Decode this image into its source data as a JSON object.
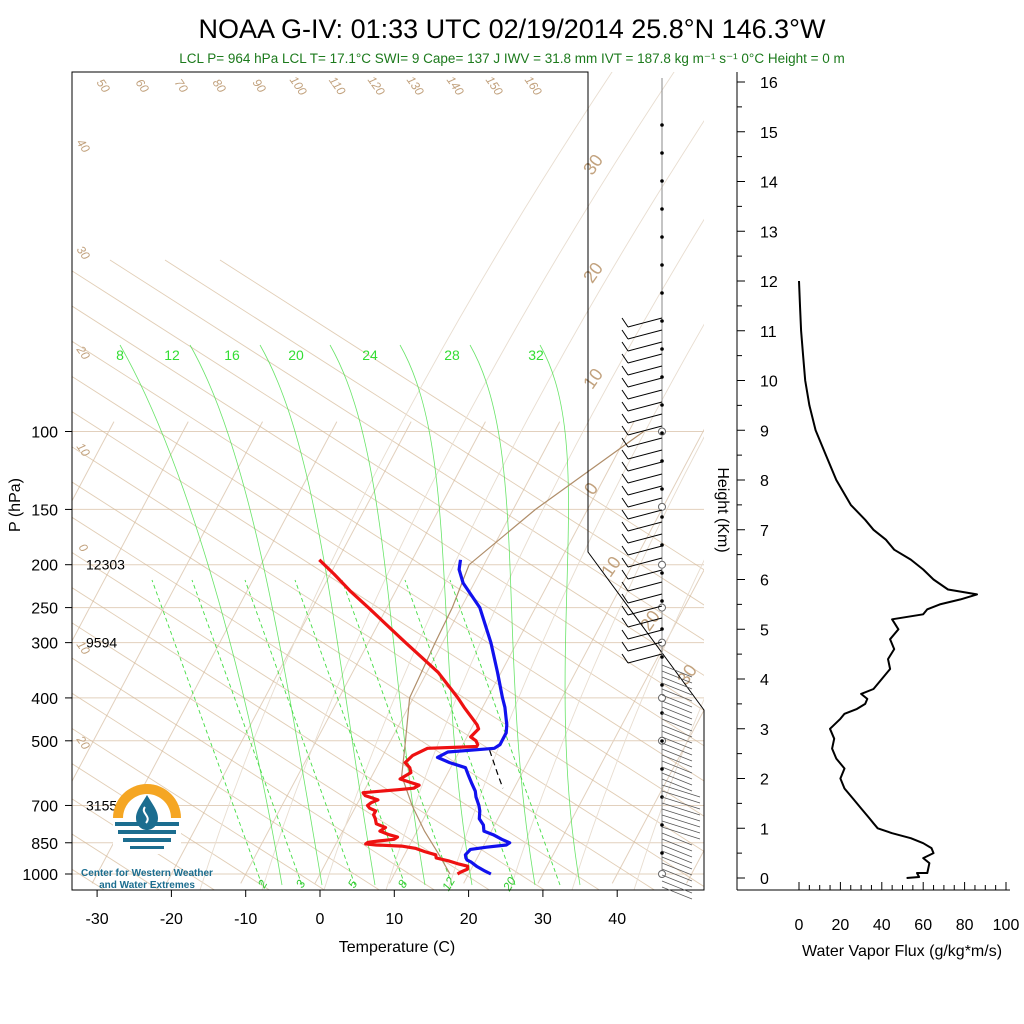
{
  "header": {
    "title": "NOAA G-IV: 01:33 UTC 02/19/2014  25.8°N 146.3°W",
    "subtitle": "LCL P= 964 hPa  LCL T= 17.1°C  SWI= 9  Cape= 137 J  IWV = 31.8 mm  IVT = 187.8 kg m⁻¹ s⁻¹  0°C Height = 0 m"
  },
  "logo": {
    "line1": "Center for Western Weather",
    "line2": "and Water Extremes",
    "colors": {
      "sun": "#f5a623",
      "water": "#1b6d8f"
    },
    "icon": "water-drop-logo"
  },
  "colors": {
    "temperature": "#ee1111",
    "dewpoint": "#1111ee",
    "isotherm": "#e2d0bd",
    "dry_adiabat": "#d4b896",
    "moist_adiabat": "#e8ddd0",
    "mixing_ratio": "#44dd44",
    "parcel": "#b08e6a",
    "lcl_segment": "#000000"
  },
  "chart_data": [
    {
      "type": "line",
      "name": "skew-t",
      "xlabel": "Temperature (C)",
      "ylabel": "P (hPa)",
      "x_ticks": [
        -30,
        -20,
        -10,
        0,
        10,
        20,
        30,
        40
      ],
      "pressure_ticks": [
        100,
        150,
        200,
        250,
        300,
        400,
        500,
        700,
        850,
        1000
      ],
      "height_labels": [
        {
          "p": 200,
          "label": "12303"
        },
        {
          "p": 300,
          "label": "9594"
        },
        {
          "p": 700,
          "label": "3155"
        }
      ],
      "mixing_ratio_labels_upper": [
        "8",
        "12",
        "16",
        "20",
        "24",
        "28",
        "32"
      ],
      "mixing_ratio_labels_lower": [
        "2",
        "3",
        "5",
        "8",
        "12",
        "20"
      ],
      "dry_adiabat_labels": [
        "50",
        "60",
        "70",
        "80",
        "90",
        "100",
        "110",
        "120",
        "130",
        "140",
        "150",
        "160"
      ],
      "dry_adiabat_side_labels": [
        "40",
        "30",
        "20",
        "10",
        "0",
        "10",
        "20"
      ],
      "moist_adiabat_labels": [
        "30",
        "20",
        "10",
        "0",
        "10",
        "20",
        "30"
      ],
      "series": [
        {
          "name": "Temperature",
          "points": [
            [
              1000,
              18.5
            ],
            [
              990,
              18.8
            ],
            [
              975,
              19.5
            ],
            [
              960,
              19.3
            ],
            [
              950,
              18.0
            ],
            [
              935,
              16.5
            ],
            [
              920,
              14.5
            ],
            [
              905,
              14.2
            ],
            [
              890,
              12.5
            ],
            [
              875,
              11.0
            ],
            [
              865,
              9.0
            ],
            [
              860,
              5.5
            ],
            [
              855,
              4.0
            ],
            [
              848,
              4.2
            ],
            [
              842,
              5.5
            ],
            [
              835,
              7.5
            ],
            [
              825,
              7.8
            ],
            [
              815,
              6.5
            ],
            [
              800,
              5.0
            ],
            [
              785,
              5.5
            ],
            [
              770,
              4.0
            ],
            [
              750,
              3.5
            ],
            [
              735,
              3.0
            ],
            [
              720,
              3.0
            ],
            [
              710,
              2.0
            ],
            [
              700,
              1.5
            ],
            [
              690,
              1.8
            ],
            [
              680,
              2.5
            ],
            [
              665,
              0.5
            ],
            [
              655,
              0.0
            ],
            [
              645,
              4.5
            ],
            [
              640,
              6.5
            ],
            [
              630,
              7.0
            ],
            [
              620,
              5.5
            ],
            [
              610,
              4.0
            ],
            [
              600,
              4.5
            ],
            [
              590,
              5.0
            ],
            [
              575,
              4.5
            ],
            [
              560,
              3.5
            ],
            [
              540,
              4.0
            ],
            [
              520,
              5.5
            ],
            [
              515,
              12.0
            ],
            [
              510,
              12.0
            ],
            [
              500,
              11.5
            ],
            [
              490,
              10.5
            ],
            [
              470,
              11.0
            ],
            [
              460,
              10.5
            ],
            [
              420,
              7.5
            ],
            [
              400,
              6.0
            ],
            [
              350,
              1.5
            ],
            [
              300,
              -5.0
            ],
            [
              250,
              -12.5
            ],
            [
              230,
              -16.0
            ],
            [
              210,
              -19.5
            ],
            [
              195,
              -22.5
            ]
          ]
        },
        {
          "name": "Dewpoint",
          "points": [
            [
              1000,
              23.0
            ],
            [
              985,
              22.0
            ],
            [
              960,
              20.5
            ],
            [
              940,
              19.5
            ],
            [
              930,
              18.8
            ],
            [
              920,
              18.5
            ],
            [
              905,
              18.2
            ],
            [
              880,
              18.5
            ],
            [
              870,
              20.5
            ],
            [
              860,
              23.0
            ],
            [
              850,
              23.3
            ],
            [
              835,
              22.0
            ],
            [
              815,
              20.5
            ],
            [
              800,
              19.0
            ],
            [
              775,
              18.5
            ],
            [
              750,
              17.5
            ],
            [
              720,
              17.0
            ],
            [
              700,
              16.5
            ],
            [
              670,
              15.5
            ],
            [
              650,
              15.0
            ],
            [
              625,
              14.0
            ],
            [
              600,
              13.0
            ],
            [
              575,
              12.0
            ],
            [
              560,
              9.5
            ],
            [
              545,
              7.5
            ],
            [
              530,
              8.5
            ],
            [
              525,
              11.5
            ],
            [
              520,
              14.5
            ],
            [
              510,
              15.0
            ],
            [
              500,
              15.0
            ],
            [
              480,
              15.0
            ],
            [
              460,
              14.5
            ],
            [
              420,
              13.0
            ],
            [
              400,
              12.0
            ],
            [
              350,
              9.5
            ],
            [
              300,
              6.5
            ],
            [
              250,
              2.5
            ],
            [
              220,
              -1.5
            ],
            [
              205,
              -3.0
            ],
            [
              195,
              -3.5
            ]
          ]
        }
      ],
      "parcel_path": [
        [
          1000,
          17.5
        ],
        [
          900,
          14.5
        ],
        [
          800,
          11.0
        ],
        [
          700,
          7.5
        ],
        [
          600,
          4.0
        ],
        [
          500,
          2.0
        ],
        [
          400,
          -0.5
        ],
        [
          300,
          -1.0
        ],
        [
          250,
          -1.2
        ],
        [
          200,
          -2.0
        ],
        [
          150,
          3.0
        ],
        [
          100,
          12.0
        ]
      ],
      "lcl_dashed": [
        [
          525,
          14.0
        ],
        [
          600,
          17.0
        ],
        [
          640,
          18.5
        ]
      ]
    },
    {
      "type": "line",
      "name": "water-vapor-flux",
      "xlabel": "Water Vapor Flux (g/kg*m/s)",
      "ylabel": "Height (Km)",
      "x_ticks": [
        0,
        20,
        40,
        60,
        80,
        100
      ],
      "xlim": [
        0,
        100
      ],
      "y_ticks": [
        0,
        1,
        2,
        3,
        4,
        5,
        6,
        7,
        8,
        9,
        10,
        11,
        12,
        13,
        14,
        15,
        16
      ],
      "ylim": [
        0,
        16
      ],
      "series": [
        {
          "name": "Water Vapor Flux",
          "points": [
            [
              52,
              0.0
            ],
            [
              58,
              0.02
            ],
            [
              57,
              0.1
            ],
            [
              62,
              0.1
            ],
            [
              63,
              0.3
            ],
            [
              60,
              0.4
            ],
            [
              65,
              0.5
            ],
            [
              64,
              0.6
            ],
            [
              60,
              0.7
            ],
            [
              54,
              0.8
            ],
            [
              45,
              0.9
            ],
            [
              38,
              1.0
            ],
            [
              36,
              1.1
            ],
            [
              34,
              1.2
            ],
            [
              30,
              1.4
            ],
            [
              26,
              1.6
            ],
            [
              22,
              1.8
            ],
            [
              20,
              2.0
            ],
            [
              22,
              2.2
            ],
            [
              18,
              2.4
            ],
            [
              16,
              2.6
            ],
            [
              17,
              2.8
            ],
            [
              15,
              3.0
            ],
            [
              20,
              3.2
            ],
            [
              22,
              3.3
            ],
            [
              28,
              3.4
            ],
            [
              32,
              3.5
            ],
            [
              33,
              3.6
            ],
            [
              30,
              3.7
            ],
            [
              36,
              3.8
            ],
            [
              40,
              4.0
            ],
            [
              44,
              4.2
            ],
            [
              43,
              4.4
            ],
            [
              46,
              4.6
            ],
            [
              44,
              4.8
            ],
            [
              48,
              5.0
            ],
            [
              45,
              5.2
            ],
            [
              60,
              5.3
            ],
            [
              62,
              5.4
            ],
            [
              68,
              5.5
            ],
            [
              78,
              5.6
            ],
            [
              86,
              5.7
            ],
            [
              72,
              5.8
            ],
            [
              65,
              6.0
            ],
            [
              60,
              6.2
            ],
            [
              54,
              6.4
            ],
            [
              46,
              6.6
            ],
            [
              42,
              6.8
            ],
            [
              36,
              7.0
            ],
            [
              32,
              7.2
            ],
            [
              25,
              7.5
            ],
            [
              18,
              8.0
            ],
            [
              13,
              8.5
            ],
            [
              8,
              9.0
            ],
            [
              5,
              9.5
            ],
            [
              3,
              10.0
            ],
            [
              2,
              10.5
            ],
            [
              1,
              11.0
            ],
            [
              0.5,
              11.5
            ],
            [
              0,
              12.0
            ]
          ]
        }
      ]
    }
  ]
}
